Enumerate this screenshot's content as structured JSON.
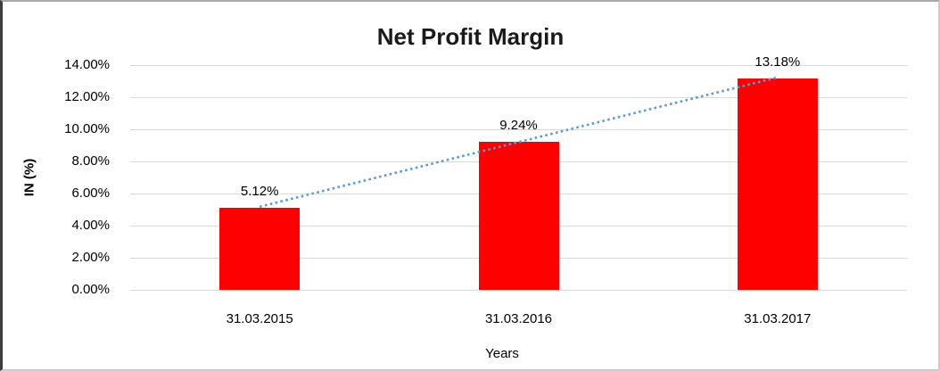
{
  "chart_data": {
    "type": "bar",
    "title": "Net Profit Margin",
    "xlabel": "Years",
    "ylabel": "IN (%)",
    "categories": [
      "31.03.2015",
      "31.03.2016",
      "31.03.2017"
    ],
    "values": [
      5.12,
      9.24,
      13.18
    ],
    "data_labels": [
      "5.12%",
      "9.24%",
      "13.18%"
    ],
    "ylim": [
      0,
      14
    ],
    "ytick_step": 2,
    "ytick_labels": [
      "0.00%",
      "2.00%",
      "4.00%",
      "6.00%",
      "8.00%",
      "10.00%",
      "12.00%",
      "14.00%"
    ],
    "grid": true,
    "legend": "none",
    "trendline": "linear-dotted",
    "bar_color": "#ff0000",
    "trendline_color": "#5b9bd5",
    "gridline_color": "#d9d9d9",
    "text_color": "#000000",
    "background_color": "#ffffff"
  }
}
